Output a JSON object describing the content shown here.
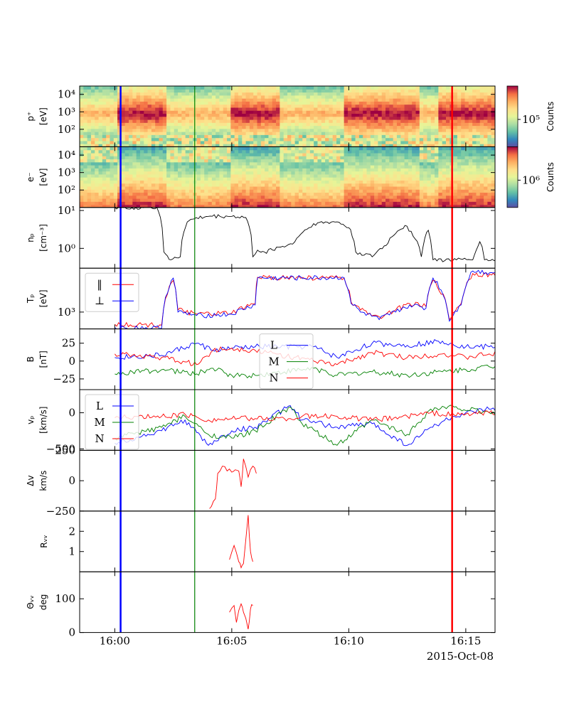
{
  "chart_data": {
    "type": "line",
    "date_label": "2015-Oct-08",
    "x_ticks": [
      "16:00",
      "16:05",
      "16:10",
      "16:15"
    ],
    "x_range": [
      "15:58:30",
      "16:16:15"
    ],
    "vertical_markers": [
      {
        "time": "16:00:15",
        "color": "#0000ff"
      },
      {
        "time": "16:03:25",
        "color": "#008000"
      },
      {
        "time": "16:14:25",
        "color": "#ff0000"
      }
    ],
    "panels": [
      {
        "id": "p-spectrogram",
        "type": "heatmap",
        "ylabel": [
          "p⁺",
          "[eV]"
        ],
        "yscale": "log",
        "ylim": [
          10,
          30000
        ],
        "y_ticks": [
          "10⁴",
          "10³",
          "10²"
        ],
        "colorbar": {
          "label": "Counts",
          "tick": "10⁵",
          "scale": "log"
        },
        "colormap": "Spectral_r"
      },
      {
        "id": "e-spectrogram",
        "type": "heatmap",
        "ylabel": [
          "e⁻",
          "[eV]"
        ],
        "yscale": "log",
        "ylim": [
          10,
          30000
        ],
        "y_ticks": [
          "10⁴",
          "10³",
          "10²"
        ],
        "colorbar": {
          "label": "Counts",
          "tick": "10⁶",
          "scale": "log"
        },
        "colormap": "Spectral_r"
      },
      {
        "id": "np",
        "type": "line",
        "ylabel": [
          "nₚ",
          "[cm⁻³]"
        ],
        "yscale": "log",
        "ylim": [
          0.3,
          12
        ],
        "y_ticks": [
          "10¹",
          "10⁰"
        ],
        "series": [
          {
            "color": "#000000",
            "points": [
              [
                0,
                12
              ],
              [
                1.8,
                12
              ],
              [
                2.1,
                0.8
              ],
              [
                2.4,
                0.5
              ],
              [
                2.8,
                0.6
              ],
              [
                3.1,
                5
              ],
              [
                3.4,
                6
              ],
              [
                4,
                7
              ],
              [
                5,
                7
              ],
              [
                5.6,
                6.5
              ],
              [
                5.9,
                0.6
              ],
              [
                6.1,
                0.9
              ],
              [
                6.4,
                0.8
              ],
              [
                7.6,
                1.3
              ],
              [
                8.3,
                3.5
              ],
              [
                8.5,
                4.5
              ],
              [
                9.5,
                5
              ],
              [
                10,
                3.5
              ],
              [
                10.3,
                0.8
              ],
              [
                11,
                0.6
              ],
              [
                11.6,
                1.2
              ],
              [
                12.4,
                4
              ],
              [
                13.1,
                0.6
              ],
              [
                13.4,
                3
              ],
              [
                13.6,
                0.5
              ],
              [
                14.6,
                0.5
              ],
              [
                15.3,
                0.5
              ],
              [
                15.6,
                1.5
              ],
              [
                15.8,
                0.5
              ],
              [
                16.8,
                0.5
              ],
              [
                17.4,
                0.5
              ],
              [
                17.6,
                2
              ],
              [
                17.75,
                0.5
              ]
            ]
          }
        ]
      },
      {
        "id": "Tp",
        "type": "line",
        "ylabel": [
          "Tₚ",
          "[eV]"
        ],
        "yscale": "log",
        "ylim": [
          450,
          8000
        ],
        "y_ticks": [
          "10³"
        ],
        "legend": {
          "placement": "top-left",
          "entries": [
            {
              "label": "‖",
              "color": "#ff0000"
            },
            {
              "label": "⊥",
              "color": "#0000ff"
            }
          ]
        },
        "series": [
          {
            "color": "#ff0000",
            "points": [
              [
                0,
                560
              ],
              [
                2,
                540
              ],
              [
                2.5,
                4500
              ],
              [
                2.7,
                1100
              ],
              [
                3.5,
                900
              ],
              [
                5,
                950
              ],
              [
                6,
                1500
              ],
              [
                6.1,
                5200
              ],
              [
                9.8,
                5000
              ],
              [
                10.1,
                1600
              ],
              [
                10.5,
                1100
              ],
              [
                11.3,
                800
              ],
              [
                12,
                1100
              ],
              [
                12.6,
                1500
              ],
              [
                13.3,
                1300
              ],
              [
                13.6,
                4500
              ],
              [
                14.3,
                700
              ],
              [
                14.8,
                1500
              ],
              [
                15.3,
                6200
              ],
              [
                16.1,
                5800
              ],
              [
                17.7,
                6000
              ]
            ]
          },
          {
            "color": "#0000ff",
            "points": [
              [
                0,
                480
              ],
              [
                2,
                470
              ],
              [
                2.5,
                5000
              ],
              [
                2.7,
                1000
              ],
              [
                3.5,
                850
              ],
              [
                5,
                900
              ],
              [
                6,
                1400
              ],
              [
                6.1,
                5000
              ],
              [
                9.8,
                5100
              ],
              [
                10.1,
                1500
              ],
              [
                10.5,
                1000
              ],
              [
                11.3,
                700
              ],
              [
                12,
                1000
              ],
              [
                12.6,
                1400
              ],
              [
                13.3,
                1200
              ],
              [
                13.6,
                5000
              ],
              [
                14.3,
                650
              ],
              [
                14.8,
                1400
              ],
              [
                15.3,
                7000
              ],
              [
                16.1,
                6500
              ],
              [
                17.7,
                7000
              ]
            ]
          }
        ]
      },
      {
        "id": "B",
        "type": "line",
        "ylabel": [
          "B",
          "[nT]"
        ],
        "ylim": [
          -40,
          45
        ],
        "y_ticks": [
          "25",
          "0",
          "−25"
        ],
        "legend": {
          "placement": "top-center",
          "entries": [
            {
              "label": "L",
              "color": "#0000ff"
            },
            {
              "label": "M",
              "color": "#008000"
            },
            {
              "label": "N",
              "color": "#ff0000"
            }
          ]
        },
        "series": [
          {
            "name": "L",
            "color": "#0000ff",
            "points": [
              [
                0,
                5
              ],
              [
                2,
                8
              ],
              [
                3.5,
                25
              ],
              [
                4.2,
                15
              ],
              [
                5,
                18
              ],
              [
                6,
                20
              ],
              [
                8.5,
                20
              ],
              [
                9.5,
                5
              ],
              [
                11,
                25
              ],
              [
                12.5,
                22
              ],
              [
                14,
                28
              ],
              [
                15,
                20
              ],
              [
                16,
                20
              ],
              [
                17.75,
                25
              ]
            ]
          },
          {
            "name": "M",
            "color": "#008000",
            "points": [
              [
                0,
                -18
              ],
              [
                2,
                -12
              ],
              [
                3.5,
                -18
              ],
              [
                4.2,
                -10
              ],
              [
                5,
                -20
              ],
              [
                6,
                -20
              ],
              [
                8.5,
                -10
              ],
              [
                9.5,
                -20
              ],
              [
                11,
                -15
              ],
              [
                12.5,
                -20
              ],
              [
                14,
                -15
              ],
              [
                15,
                -12
              ],
              [
                16,
                -8
              ],
              [
                17.75,
                -5
              ]
            ]
          },
          {
            "name": "N",
            "color": "#ff0000",
            "points": [
              [
                0,
                10
              ],
              [
                2,
                5
              ],
              [
                3.5,
                -5
              ],
              [
                4.2,
                15
              ],
              [
                5,
                18
              ],
              [
                6,
                15
              ],
              [
                8.5,
                0
              ],
              [
                9.5,
                -5
              ],
              [
                11,
                12
              ],
              [
                12.5,
                5
              ],
              [
                14,
                10
              ],
              [
                15,
                5
              ],
              [
                16,
                10
              ],
              [
                17.75,
                12
              ]
            ]
          }
        ]
      },
      {
        "id": "vp",
        "type": "line",
        "ylabel": [
          "vₚ",
          "[km/s]"
        ],
        "ylim": [
          -520,
          320
        ],
        "y_ticks": [
          "0",
          "−500"
        ],
        "legend": {
          "placement": "top-left",
          "entries": [
            {
              "label": "L",
              "color": "#0000ff"
            },
            {
              "label": "M",
              "color": "#008000"
            },
            {
              "label": "N",
              "color": "#ff0000"
            }
          ]
        },
        "series": [
          {
            "name": "L",
            "color": "#0000ff",
            "points": [
              [
                0,
                -420
              ],
              [
                2,
                -250
              ],
              [
                3,
                -100
              ],
              [
                4,
                -450
              ],
              [
                5,
                -250
              ],
              [
                6,
                -200
              ],
              [
                7.5,
                100
              ],
              [
                8,
                -100
              ],
              [
                9.5,
                -200
              ],
              [
                11,
                -150
              ],
              [
                12.5,
                -450
              ],
              [
                13.5,
                -200
              ],
              [
                14.5,
                -50
              ],
              [
                16,
                50
              ],
              [
                17.75,
                100
              ]
            ]
          },
          {
            "name": "M",
            "color": "#008000",
            "points": [
              [
                0,
                -350
              ],
              [
                2,
                -200
              ],
              [
                3,
                -50
              ],
              [
                4,
                -300
              ],
              [
                5,
                -350
              ],
              [
                6,
                -250
              ],
              [
                7.5,
                80
              ],
              [
                8,
                -150
              ],
              [
                9.5,
                -450
              ],
              [
                11,
                -100
              ],
              [
                12.5,
                -300
              ],
              [
                13.5,
                50
              ],
              [
                14.5,
                80
              ],
              [
                16,
                0
              ],
              [
                17.75,
                50
              ]
            ]
          },
          {
            "name": "N",
            "color": "#ff0000",
            "points": [
              [
                0,
                -70
              ],
              [
                2,
                -50
              ],
              [
                3,
                -20
              ],
              [
                4,
                -100
              ],
              [
                5,
                -80
              ],
              [
                6,
                -80
              ],
              [
                7.5,
                -80
              ],
              [
                8,
                -50
              ],
              [
                9.5,
                -50
              ],
              [
                11,
                -100
              ],
              [
                12.5,
                -50
              ],
              [
                13.5,
                0
              ],
              [
                14.5,
                -30
              ],
              [
                16,
                0
              ],
              [
                17.75,
                0
              ]
            ]
          }
        ]
      },
      {
        "id": "dv",
        "type": "line",
        "ylabel": [
          "Δv",
          "km/s"
        ],
        "ylim": [
          -250,
          250
        ],
        "y_ticks": [
          "250",
          "0",
          "−250"
        ],
        "series": [
          {
            "color": "#ff0000",
            "points": [
              [
                4.05,
                -230
              ],
              [
                4.3,
                -150
              ],
              [
                4.4,
                60
              ],
              [
                4.6,
                120
              ],
              [
                4.8,
                80
              ],
              [
                5,
                70
              ],
              [
                5.3,
                80
              ],
              [
                5.4,
                -50
              ],
              [
                5.5,
                180
              ],
              [
                5.7,
                30
              ],
              [
                5.9,
                120
              ],
              [
                6.05,
                60
              ]
            ]
          }
        ]
      },
      {
        "id": "Rw",
        "type": "line",
        "ylabel": [
          "Rᵥᵥ"
        ],
        "ylim": [
          0,
          3
        ],
        "y_ticks": [
          "2",
          "1"
        ],
        "series": [
          {
            "color": "#ff0000",
            "points": [
              [
                4.9,
                0.6
              ],
              [
                5.1,
                1.3
              ],
              [
                5.3,
                0.5
              ],
              [
                5.4,
                0.2
              ],
              [
                5.5,
                0.4
              ],
              [
                5.7,
                2.8
              ],
              [
                5.8,
                1.0
              ],
              [
                5.9,
                0.5
              ]
            ]
          }
        ]
      },
      {
        "id": "Tw",
        "type": "line",
        "ylabel": [
          "Θᵥᵥ",
          "deg"
        ],
        "ylim": [
          0,
          180
        ],
        "y_ticks": [
          "100",
          "0"
        ],
        "series": [
          {
            "color": "#ff0000",
            "points": [
              [
                4.9,
                60
              ],
              [
                5.1,
                80
              ],
              [
                5.2,
                30
              ],
              [
                5.4,
                85
              ],
              [
                5.5,
                60
              ],
              [
                5.7,
                10
              ],
              [
                5.8,
                70
              ],
              [
                5.9,
                80
              ]
            ]
          }
        ]
      }
    ]
  }
}
